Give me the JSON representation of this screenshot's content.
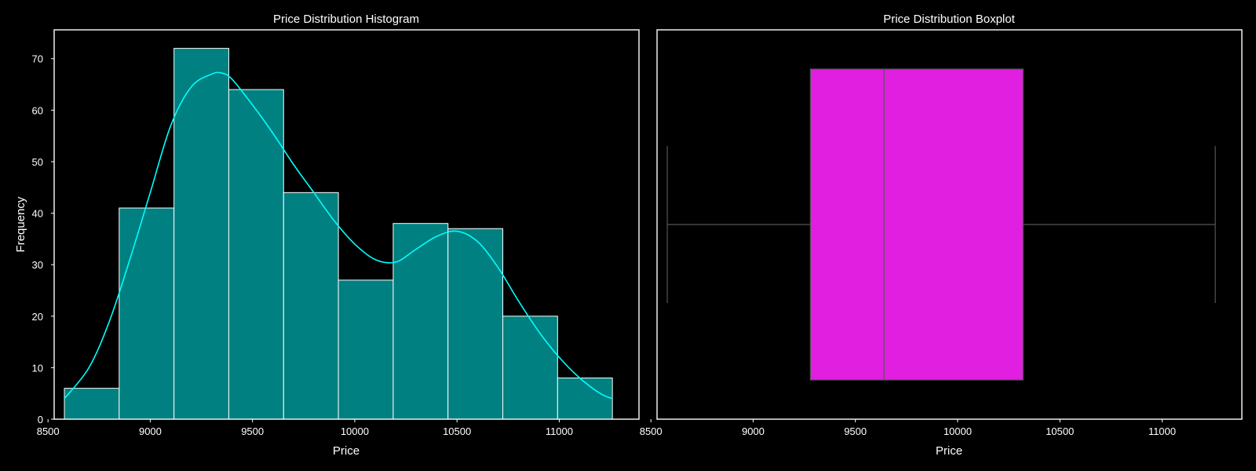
{
  "colors": {
    "background": "#000000",
    "axes": "#ffffff",
    "bar_fill": "#008080",
    "bar_edge": "#ffffff",
    "kde_line": "#00ffff",
    "box_fill": "#e01fe0",
    "box_line": "#555555"
  },
  "chart_data": [
    {
      "type": "histogram",
      "title": "Price Distribution Histogram",
      "xlabel": "Price",
      "ylabel": "Frequency",
      "xlim": [
        8530,
        11390
      ],
      "ylim": [
        0,
        75.6
      ],
      "xticks": [
        8500,
        9000,
        9500,
        10000,
        10500,
        11000
      ],
      "yticks": [
        0,
        10,
        20,
        30,
        40,
        50,
        60,
        70
      ],
      "bins": [
        {
          "start": 8580,
          "end": 8848,
          "count": 6
        },
        {
          "start": 8848,
          "end": 9116,
          "count": 41
        },
        {
          "start": 9116,
          "end": 9384,
          "count": 72
        },
        {
          "start": 9384,
          "end": 9652,
          "count": 64
        },
        {
          "start": 9652,
          "end": 9920,
          "count": 44
        },
        {
          "start": 9920,
          "end": 10188,
          "count": 27
        },
        {
          "start": 10188,
          "end": 10456,
          "count": 38
        },
        {
          "start": 10456,
          "end": 10724,
          "count": 37
        },
        {
          "start": 10724,
          "end": 10992,
          "count": 20
        },
        {
          "start": 10992,
          "end": 11260,
          "count": 8
        }
      ],
      "kde": {
        "x": [
          8580,
          8700,
          8800,
          8900,
          9000,
          9100,
          9200,
          9300,
          9350,
          9400,
          9500,
          9600,
          9700,
          9800,
          9900,
          10000,
          10100,
          10200,
          10300,
          10400,
          10500,
          10600,
          10700,
          10800,
          10900,
          11000,
          11100,
          11200,
          11260
        ],
        "y": [
          4,
          10,
          19,
          31,
          44,
          57,
          64.5,
          67,
          67.2,
          66,
          61,
          55.5,
          49.5,
          44,
          38.5,
          34,
          31,
          30.5,
          33,
          35.5,
          36.5,
          34.5,
          29.5,
          23,
          17,
          12,
          8,
          5,
          4
        ]
      },
      "grid": false
    },
    {
      "type": "boxplot",
      "title": "Price Distribution Boxplot",
      "xlabel": "Price",
      "xlim": [
        8530,
        11390
      ],
      "xticks": [
        8500,
        9000,
        9500,
        10000,
        10500,
        11000
      ],
      "stats": {
        "whisker_low": 8580,
        "q1": 9280,
        "median": 9640,
        "q3": 10320,
        "whisker_high": 11260
      },
      "grid": false
    }
  ]
}
